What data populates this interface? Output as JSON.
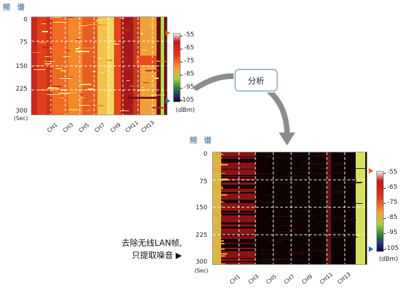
{
  "top": {
    "title": "频 谱",
    "y_ticks": [
      "0",
      "75",
      "150",
      "225",
      "300"
    ],
    "unit": "(Sec)",
    "x_ticks": [
      "CH1",
      "CH3",
      "CH5",
      "CH7",
      "CH9",
      "CH11",
      "CH13"
    ]
  },
  "bottom": {
    "title": "频 谱",
    "y_ticks": [
      "0",
      "75",
      "150",
      "225",
      "300"
    ],
    "unit": "(Sec)",
    "x_ticks": [
      "CH1",
      "CH3",
      "CH5",
      "CH7",
      "CH9",
      "CH11",
      "CH13"
    ]
  },
  "colorbar": {
    "labels": [
      "-55",
      "-65",
      "-75",
      "-85",
      "-95",
      "-105"
    ],
    "unit": "(dBm)"
  },
  "analyze_button": {
    "label": "分析"
  },
  "note": {
    "line1": "去除无线LAN帧,",
    "line2": "只提取噪音 ▶"
  },
  "colors": {
    "arrow": "#8c8c8c",
    "button_border": "#6d90b8",
    "title": "#6f8fb0",
    "low_marker": "#2b66c8",
    "high_marker": "#e06a1a"
  },
  "icons": [
    "flow-arrow-icon",
    "high-marker-icon",
    "low-marker-icon"
  ]
}
